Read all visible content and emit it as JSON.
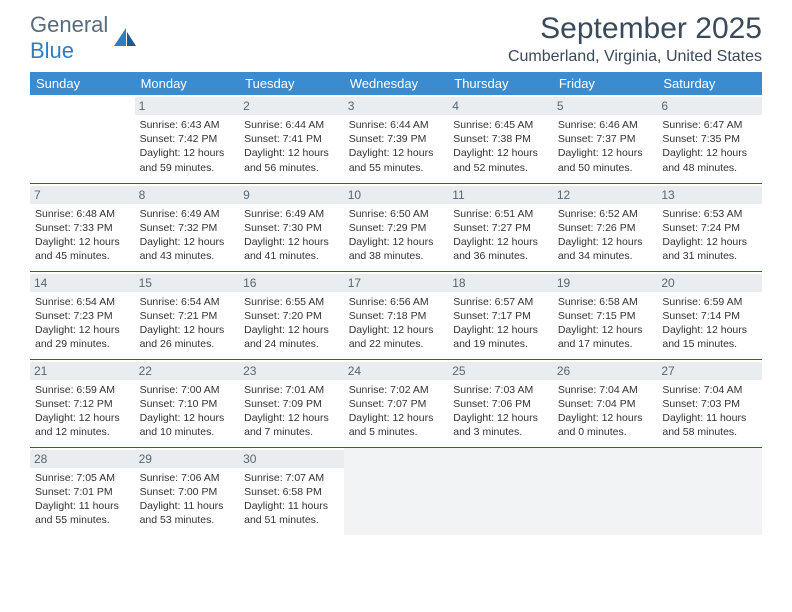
{
  "logo": {
    "word1": "General",
    "word2": "Blue"
  },
  "title": "September 2025",
  "location": "Cumberland, Virginia, United States",
  "colors": {
    "header_bg": "#3b8bd0",
    "header_text": "#ffffff",
    "daynum_bg": "#e9edf0",
    "border": "#2d5a8a",
    "title_color": "#3a4a5a"
  },
  "day_headers": [
    "Sunday",
    "Monday",
    "Tuesday",
    "Wednesday",
    "Thursday",
    "Friday",
    "Saturday"
  ],
  "weeks": [
    [
      null,
      {
        "n": "1",
        "sr": "6:43 AM",
        "ss": "7:42 PM",
        "dl": "12 hours and 59 minutes."
      },
      {
        "n": "2",
        "sr": "6:44 AM",
        "ss": "7:41 PM",
        "dl": "12 hours and 56 minutes."
      },
      {
        "n": "3",
        "sr": "6:44 AM",
        "ss": "7:39 PM",
        "dl": "12 hours and 55 minutes."
      },
      {
        "n": "4",
        "sr": "6:45 AM",
        "ss": "7:38 PM",
        "dl": "12 hours and 52 minutes."
      },
      {
        "n": "5",
        "sr": "6:46 AM",
        "ss": "7:37 PM",
        "dl": "12 hours and 50 minutes."
      },
      {
        "n": "6",
        "sr": "6:47 AM",
        "ss": "7:35 PM",
        "dl": "12 hours and 48 minutes."
      }
    ],
    [
      {
        "n": "7",
        "sr": "6:48 AM",
        "ss": "7:33 PM",
        "dl": "12 hours and 45 minutes."
      },
      {
        "n": "8",
        "sr": "6:49 AM",
        "ss": "7:32 PM",
        "dl": "12 hours and 43 minutes."
      },
      {
        "n": "9",
        "sr": "6:49 AM",
        "ss": "7:30 PM",
        "dl": "12 hours and 41 minutes."
      },
      {
        "n": "10",
        "sr": "6:50 AM",
        "ss": "7:29 PM",
        "dl": "12 hours and 38 minutes."
      },
      {
        "n": "11",
        "sr": "6:51 AM",
        "ss": "7:27 PM",
        "dl": "12 hours and 36 minutes."
      },
      {
        "n": "12",
        "sr": "6:52 AM",
        "ss": "7:26 PM",
        "dl": "12 hours and 34 minutes."
      },
      {
        "n": "13",
        "sr": "6:53 AM",
        "ss": "7:24 PM",
        "dl": "12 hours and 31 minutes."
      }
    ],
    [
      {
        "n": "14",
        "sr": "6:54 AM",
        "ss": "7:23 PM",
        "dl": "12 hours and 29 minutes."
      },
      {
        "n": "15",
        "sr": "6:54 AM",
        "ss": "7:21 PM",
        "dl": "12 hours and 26 minutes."
      },
      {
        "n": "16",
        "sr": "6:55 AM",
        "ss": "7:20 PM",
        "dl": "12 hours and 24 minutes."
      },
      {
        "n": "17",
        "sr": "6:56 AM",
        "ss": "7:18 PM",
        "dl": "12 hours and 22 minutes."
      },
      {
        "n": "18",
        "sr": "6:57 AM",
        "ss": "7:17 PM",
        "dl": "12 hours and 19 minutes."
      },
      {
        "n": "19",
        "sr": "6:58 AM",
        "ss": "7:15 PM",
        "dl": "12 hours and 17 minutes."
      },
      {
        "n": "20",
        "sr": "6:59 AM",
        "ss": "7:14 PM",
        "dl": "12 hours and 15 minutes."
      }
    ],
    [
      {
        "n": "21",
        "sr": "6:59 AM",
        "ss": "7:12 PM",
        "dl": "12 hours and 12 minutes."
      },
      {
        "n": "22",
        "sr": "7:00 AM",
        "ss": "7:10 PM",
        "dl": "12 hours and 10 minutes."
      },
      {
        "n": "23",
        "sr": "7:01 AM",
        "ss": "7:09 PM",
        "dl": "12 hours and 7 minutes."
      },
      {
        "n": "24",
        "sr": "7:02 AM",
        "ss": "7:07 PM",
        "dl": "12 hours and 5 minutes."
      },
      {
        "n": "25",
        "sr": "7:03 AM",
        "ss": "7:06 PM",
        "dl": "12 hours and 3 minutes."
      },
      {
        "n": "26",
        "sr": "7:04 AM",
        "ss": "7:04 PM",
        "dl": "12 hours and 0 minutes."
      },
      {
        "n": "27",
        "sr": "7:04 AM",
        "ss": "7:03 PM",
        "dl": "11 hours and 58 minutes."
      }
    ],
    [
      {
        "n": "28",
        "sr": "7:05 AM",
        "ss": "7:01 PM",
        "dl": "11 hours and 55 minutes."
      },
      {
        "n": "29",
        "sr": "7:06 AM",
        "ss": "7:00 PM",
        "dl": "11 hours and 53 minutes."
      },
      {
        "n": "30",
        "sr": "7:07 AM",
        "ss": "6:58 PM",
        "dl": "11 hours and 51 minutes."
      },
      null,
      null,
      null,
      null
    ]
  ],
  "labels": {
    "sunrise": "Sunrise: ",
    "sunset": "Sunset: ",
    "daylight": "Daylight: "
  }
}
